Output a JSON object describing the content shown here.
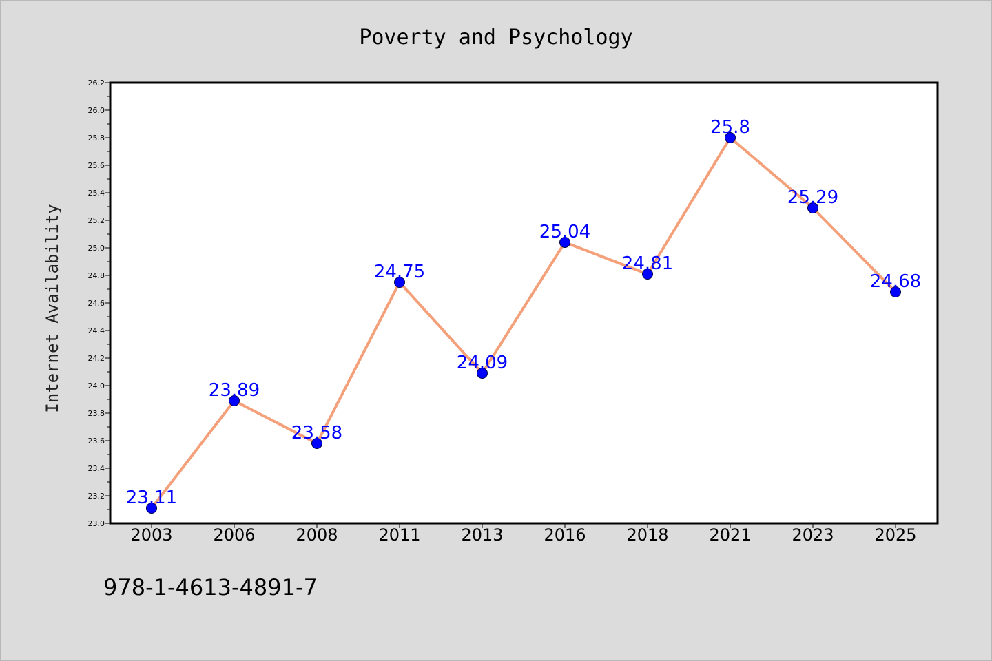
{
  "chart_data": {
    "type": "line",
    "title": "Poverty and Psychology",
    "xlabel": "",
    "ylabel": "Internet Availability",
    "categories": [
      "2003",
      "2006",
      "2008",
      "2011",
      "2013",
      "2016",
      "2018",
      "2021",
      "2023",
      "2025"
    ],
    "series": [
      {
        "values": [
          23.11,
          23.89,
          23.58,
          24.75,
          24.09,
          25.04,
          24.81,
          25.8,
          25.29,
          24.68
        ],
        "labels": [
          "23.11",
          "23.89",
          "23.58",
          "24.75",
          "24.09",
          "25.04",
          "24.81",
          "25.8",
          "25.29",
          "24.68"
        ]
      }
    ],
    "ylim": [
      23.0,
      26.2
    ],
    "ytick_step": 0.2,
    "grid": false,
    "colors": {
      "line": "#f4a07a",
      "marker": "#0000ff",
      "point_label": "#0000ff",
      "plot_background": "#ffffff",
      "page_background": "#dcdcdc"
    }
  },
  "footer": {
    "isbn": "978-1-4613-4891-7"
  }
}
